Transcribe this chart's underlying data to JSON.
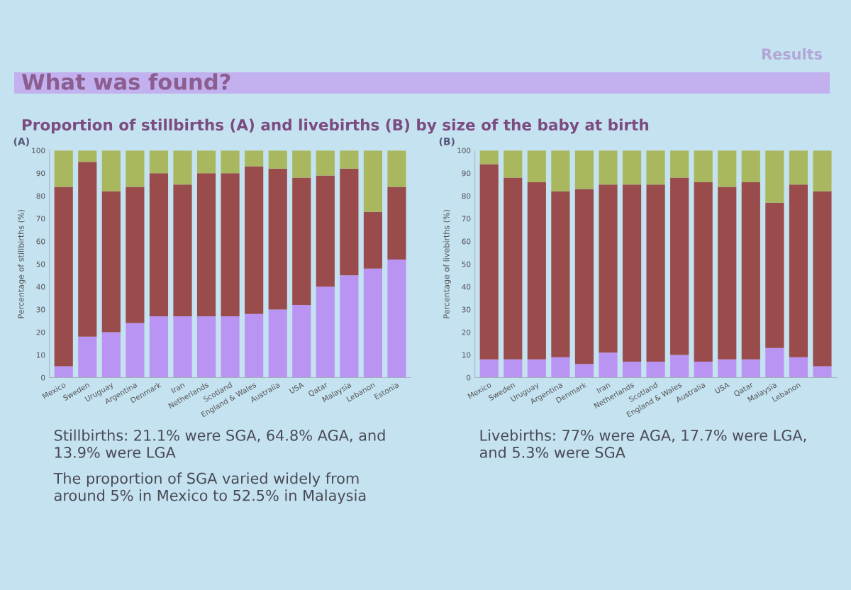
{
  "chart_data": [
    {
      "type": "other",
      "title": "What was found?",
      "subtitle": "Proportion of stillbirths (A) and livebirths (B) by size of the baby at birth",
      "annotations": [
        "Results"
      ]
    },
    {
      "type": "bar",
      "title": "(A)",
      "ylabel": "Percentage of stillbirths (%)",
      "stacked": true,
      "categories": [
        "Mexico",
        "Sweden",
        "Uruguay",
        "Argentina",
        "Denmark",
        "Iran",
        "Netherlands",
        "Scotland",
        "England & Wales",
        "Australia",
        "USA",
        "Qatar",
        "Malaysia",
        "Lebanon",
        "Estonia"
      ],
      "series": [
        {
          "color": "#b994f2",
          "values": [
            5,
            18,
            20,
            24,
            27,
            27,
            27,
            27,
            28,
            30,
            32,
            40,
            45,
            48,
            52
          ]
        },
        {
          "color": "#9a4b4b",
          "values": [
            79,
            77,
            62,
            60,
            63,
            58,
            63,
            63,
            65,
            62,
            56,
            49,
            47,
            25,
            32
          ]
        },
        {
          "color": "#a9b85e",
          "values": [
            16,
            5,
            18,
            16,
            10,
            15,
            10,
            10,
            7,
            8,
            12,
            11,
            8,
            27,
            16
          ]
        }
      ],
      "ylim": [
        0,
        100
      ],
      "yticks": [
        0,
        10,
        20,
        30,
        40,
        50,
        60,
        70,
        80,
        90,
        100
      ],
      "annotations": [
        "Stillbirths: 21.1% were SGA, 64.8% AGA, and 13.9% were LGA",
        "The proportion of SGA varied widely from around 5% in Mexico to 52.5% in Malaysia"
      ]
    },
    {
      "type": "bar",
      "title": "(B)",
      "ylabel": "Percentage of livebirths (%)",
      "stacked": true,
      "categories": [
        "Mexico",
        "Sweden",
        "Uruguay",
        "Argentina",
        "Denmark",
        "Iran",
        "Netherlands",
        "Scotland",
        "England & Wales",
        "Australia",
        "USA",
        "Qatar",
        "Malaysia",
        "Lebanon",
        null
      ],
      "series": [
        {
          "color": "#b994f2",
          "values": [
            8,
            8,
            8,
            9,
            6,
            11,
            7,
            7,
            10,
            7,
            8,
            8,
            13,
            9,
            5
          ]
        },
        {
          "color": "#9a4b4b",
          "values": [
            86,
            80,
            78,
            73,
            77,
            74,
            78,
            78,
            78,
            79,
            76,
            78,
            64,
            76,
            77
          ]
        },
        {
          "color": "#a9b85e",
          "values": [
            6,
            12,
            14,
            18,
            17,
            15,
            15,
            15,
            12,
            14,
            16,
            14,
            23,
            15,
            18
          ]
        }
      ],
      "ylim": [
        0,
        100
      ],
      "yticks": [
        0,
        10,
        20,
        30,
        40,
        50,
        60,
        70,
        80,
        90,
        100
      ],
      "annotations": [
        "Livebirths: 77% were AGA, 17.7% were LGA, and 5.3% were SGA"
      ]
    }
  ]
}
